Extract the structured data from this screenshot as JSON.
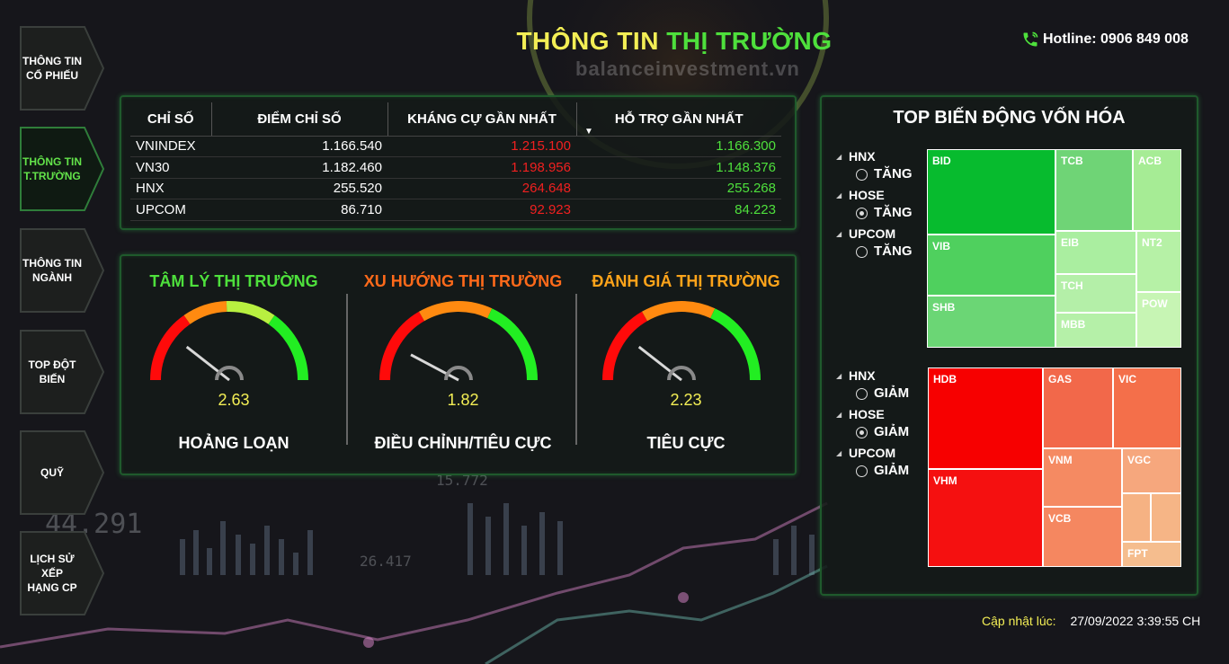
{
  "sidebar": {
    "items": [
      {
        "label": "THÔNG TIN\nCỔ PHIẾU",
        "active": false
      },
      {
        "label": "THÔNG TIN\nT.TRƯỜNG",
        "active": true
      },
      {
        "label": "THÔNG TIN\nNGÀNH",
        "active": false
      },
      {
        "label": "TOP ĐỘT\nBIẾN",
        "active": false
      },
      {
        "label": "QUỸ",
        "active": false
      },
      {
        "label": "LỊCH SỬ XẾP\nHẠNG CP",
        "active": false
      }
    ]
  },
  "header": {
    "title_part1": "THÔNG TIN",
    "title_part2": "THỊ TRƯỜNG",
    "watermark": "balanceinvestment.vn",
    "hotline": "Hotline: 0906 849 008",
    "phone_icon": "phone-icon"
  },
  "index_table": {
    "headers": [
      "CHỈ SỐ",
      "ĐIỂM CHỈ SỐ",
      "KHÁNG CỰ GẦN NHẤT",
      "HỖ TRỢ GẦN NHẤT"
    ],
    "rows": [
      {
        "name": "VNINDEX",
        "point": "1.166.540",
        "resistance": "1.215.100",
        "support": "1.166.300"
      },
      {
        "name": "VN30",
        "point": "1.182.460",
        "resistance": "1.198.956",
        "support": "1.148.376"
      },
      {
        "name": "HNX",
        "point": "255.520",
        "resistance": "264.648",
        "support": "255.268"
      },
      {
        "name": "UPCOM",
        "point": "86.710",
        "resistance": "92.923",
        "support": "84.223"
      }
    ]
  },
  "gauges": [
    {
      "title": "TÂM LÝ THỊ TRƯỜNG",
      "title_color": "#4ee03c",
      "value": "2.63",
      "status": "HOẢNG LOẠN",
      "needle_angle": 142,
      "scheme": "four"
    },
    {
      "title": "XU HƯỚNG THỊ TRƯỜNG",
      "title_color": "#ff6a1a",
      "value": "1.82",
      "status": "ĐIỀU CHỈNH/TIÊU CỰC",
      "needle_angle": 152,
      "scheme": "three"
    },
    {
      "title": "ĐÁNH GIÁ THỊ TRƯỜNG",
      "title_color": "#ffa41a",
      "value": "2.23",
      "status": "TIÊU CỰC",
      "needle_angle": 142,
      "scheme": "three"
    }
  ],
  "treemap": {
    "title": "TOP BIẾN ĐỘNG VỐN HÓA",
    "up_filters": [
      {
        "exchange": "HNX",
        "option": "TĂNG",
        "selected": false
      },
      {
        "exchange": "HOSE",
        "option": "TĂNG",
        "selected": true
      },
      {
        "exchange": "UPCOM",
        "option": "TĂNG",
        "selected": false
      }
    ],
    "down_filters": [
      {
        "exchange": "HNX",
        "option": "GIẢM",
        "selected": false
      },
      {
        "exchange": "HOSE",
        "option": "GIẢM",
        "selected": true
      },
      {
        "exchange": "UPCOM",
        "option": "GIẢM",
        "selected": false
      }
    ],
    "up_tiles": [
      {
        "label": "BID",
        "color": "#07bb2e"
      },
      {
        "label": "TCB",
        "color": "#6fd476"
      },
      {
        "label": "ACB",
        "color": "#a6ec95"
      },
      {
        "label": "VIB",
        "color": "#4fd05e"
      },
      {
        "label": "EIB",
        "color": "#aaeea0"
      },
      {
        "label": "NT2",
        "color": "#b6f1a6"
      },
      {
        "label": "TCH",
        "color": "#b4efa8"
      },
      {
        "label": "SHB",
        "color": "#6bd675"
      },
      {
        "label": "POW",
        "color": "#c7f5b4"
      },
      {
        "label": "MBB",
        "color": "#b5f0a8"
      }
    ],
    "down_tiles": [
      {
        "label": "HDB",
        "color": "#f70000"
      },
      {
        "label": "GAS",
        "color": "#f2684a"
      },
      {
        "label": "VIC",
        "color": "#f46f4a"
      },
      {
        "label": "VHM",
        "color": "#f51010"
      },
      {
        "label": "VNM",
        "color": "#f58a62"
      },
      {
        "label": "VGC",
        "color": "#f6a77d"
      },
      {
        "label": "VCB",
        "color": "#f58760"
      },
      {
        "label": "",
        "color": "#f6b283"
      },
      {
        "label": "",
        "color": "#f6b586"
      },
      {
        "label": "FPT",
        "color": "#f5bd8e"
      }
    ]
  },
  "update": {
    "label": "Cập nhật lúc:",
    "value": "27/09/2022 3:39:55 CH"
  }
}
